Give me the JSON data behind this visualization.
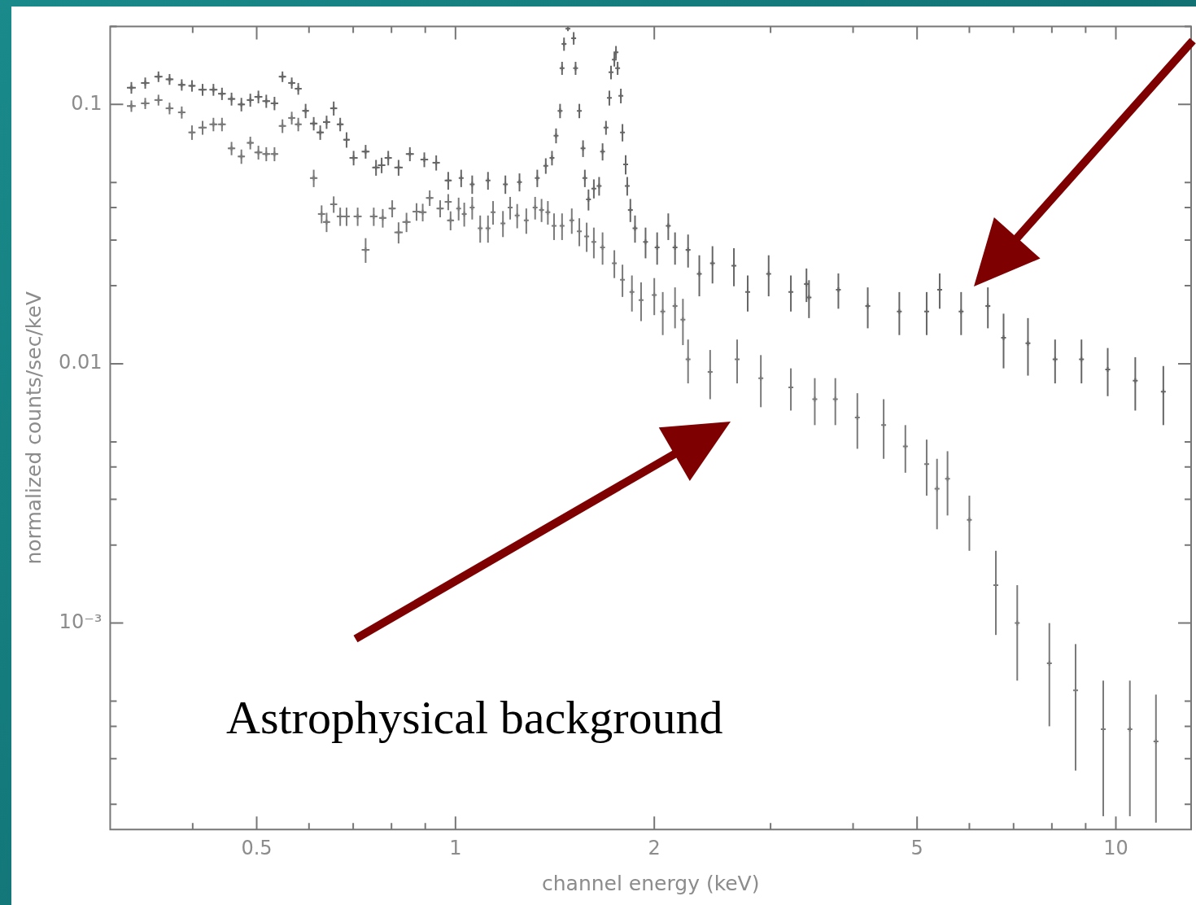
{
  "chart_data": {
    "type": "scatter",
    "xlabel": "channel energy (keV)",
    "ylabel": "normalized counts/sec/keV",
    "log": "xy",
    "marker": "cross",
    "xlim": [
      0.3,
      13
    ],
    "ylim": [
      0.00016,
      0.2
    ],
    "xticks": [
      {
        "value": 0.4,
        "label": null
      },
      0.5,
      {
        "value": 0.6,
        "label": null
      },
      {
        "value": 0.7,
        "label": null
      },
      {
        "value": 0.8,
        "label": null
      },
      {
        "value": 0.9,
        "label": null
      },
      1,
      2,
      {
        "value": 3,
        "label": null
      },
      {
        "value": 4,
        "label": null
      },
      5,
      {
        "value": 6,
        "label": null
      },
      {
        "value": 7,
        "label": null
      },
      {
        "value": 8,
        "label": null
      },
      {
        "value": 9,
        "label": null
      },
      10
    ],
    "yticks": [
      {
        "value": 0.0002,
        "label": null
      },
      {
        "value": 0.0003,
        "label": null
      },
      {
        "value": 0.0004,
        "label": null
      },
      {
        "value": 0.0005,
        "label": null
      },
      {
        "value": 0.001,
        "label": "10⁻³"
      },
      {
        "value": 0.002,
        "label": null
      },
      {
        "value": 0.003,
        "label": null
      },
      {
        "value": 0.004,
        "label": null
      },
      {
        "value": 0.005,
        "label": null
      },
      0.01,
      {
        "value": 0.02,
        "label": null
      },
      {
        "value": 0.03,
        "label": null
      },
      {
        "value": 0.04,
        "label": null
      },
      {
        "value": 0.05,
        "label": null
      },
      0.1,
      {
        "value": 0.2,
        "label": null
      }
    ],
    "annotations": [
      "Astrophysical background"
    ],
    "series": [
      {
        "color": "#666666",
        "x": [
          0.323,
          0.339,
          0.355,
          0.369,
          0.385,
          0.399,
          0.414,
          0.43,
          0.443,
          0.458,
          0.474,
          0.489,
          0.503,
          0.517,
          0.532,
          0.547,
          0.565,
          0.578,
          0.593,
          0.61,
          0.624,
          0.638,
          0.654,
          0.669,
          0.684,
          0.701,
          0.731,
          0.758,
          0.773,
          0.791,
          0.82,
          0.853,
          0.897,
          0.935,
          0.975,
          1.02,
          1.06,
          1.12,
          1.19,
          1.25,
          1.33,
          1.37,
          1.4,
          1.42,
          1.44,
          1.45,
          1.46,
          1.48,
          1.51,
          1.52,
          1.54,
          1.56,
          1.57,
          1.59,
          1.62,
          1.65,
          1.67,
          1.69,
          1.71,
          1.72,
          1.74,
          1.75,
          1.76,
          1.78,
          1.79,
          1.81,
          1.82,
          1.84,
          1.87,
          1.94,
          2.02,
          2.1,
          2.15,
          2.25,
          2.34,
          2.45,
          2.64,
          2.77,
          2.98,
          3.22,
          3.4,
          3.43,
          3.8,
          4.21,
          4.7,
          5.17,
          5.41,
          5.83,
          6.4,
          6.76,
          7.36,
          8.09,
          8.87,
          9.72,
          10.7,
          11.8
        ],
        "values": [
          0.116,
          0.121,
          0.128,
          0.125,
          0.119,
          0.118,
          0.114,
          0.114,
          0.11,
          0.105,
          0.1,
          0.104,
          0.107,
          0.103,
          0.101,
          0.128,
          0.121,
          0.115,
          0.0945,
          0.0844,
          0.078,
          0.0855,
          0.0966,
          0.0838,
          0.0731,
          0.0622,
          0.0658,
          0.0571,
          0.0583,
          0.0622,
          0.0571,
          0.0644,
          0.0613,
          0.0596,
          0.0509,
          0.052,
          0.0492,
          0.0509,
          0.0492,
          0.0502,
          0.052,
          0.058,
          0.0622,
          0.0758,
          0.0945,
          0.138,
          0.171,
          0.196,
          0.18,
          0.138,
          0.0945,
          0.0677,
          0.052,
          0.043,
          0.0474,
          0.0485,
          0.0658,
          0.0814,
          0.106,
          0.133,
          0.149,
          0.159,
          0.138,
          0.108,
          0.078,
          0.0587,
          0.0485,
          0.0392,
          0.0333,
          0.0295,
          0.0281,
          0.034,
          0.0281,
          0.0275,
          0.0222,
          0.0244,
          0.0239,
          0.0189,
          0.0222,
          0.0189,
          0.0203,
          0.018,
          0.0193,
          0.0167,
          0.0159,
          0.0159,
          0.0193,
          0.0159,
          0.0167,
          0.0126,
          0.012,
          0.0104,
          0.0104,
          0.0095,
          0.0086,
          0.0078
        ],
        "errors": [
          0.006,
          0.006,
          0.006,
          0.006,
          0.006,
          0.006,
          0.006,
          0.006,
          0.006,
          0.006,
          0.006,
          0.006,
          0.006,
          0.006,
          0.006,
          0.006,
          0.006,
          0.006,
          0.006,
          0.005,
          0.005,
          0.005,
          0.006,
          0.005,
          0.005,
          0.004,
          0.004,
          0.004,
          0.004,
          0.004,
          0.004,
          0.004,
          0.004,
          0.004,
          0.004,
          0.004,
          0.004,
          0.004,
          0.004,
          0.004,
          0.004,
          0.004,
          0.004,
          0.005,
          0.006,
          0.008,
          0.01,
          0.003,
          0.01,
          0.008,
          0.006,
          0.005,
          0.004,
          0.004,
          0.004,
          0.004,
          0.005,
          0.005,
          0.007,
          0.008,
          0.009,
          0.009,
          0.008,
          0.007,
          0.006,
          0.005,
          0.004,
          0.004,
          0.004,
          0.004,
          0.004,
          0.004,
          0.004,
          0.004,
          0.004,
          0.004,
          0.004,
          0.003,
          0.004,
          0.003,
          0.003,
          0.003,
          0.003,
          0.003,
          0.003,
          0.003,
          0.003,
          0.003,
          0.003,
          0.003,
          0.003,
          0.002,
          0.002,
          0.002,
          0.002,
          0.002
        ],
        "xerrors": [
          0.005,
          0.005,
          0.005,
          0.005,
          0.005,
          0.005,
          0.006,
          0.006,
          0.006,
          0.006,
          0.006,
          0.006,
          0.007,
          0.007,
          0.007,
          0.007,
          0.007,
          0.007,
          0.007,
          0.008,
          0.008,
          0.008,
          0.008,
          0.008,
          0.008,
          0.01,
          0.01,
          0.01,
          0.01,
          0.01,
          0.012,
          0.012,
          0.012,
          0.012,
          0.012,
          null,
          null,
          null,
          null,
          null,
          null,
          null,
          null,
          null,
          null,
          null,
          null,
          null,
          null,
          null,
          null,
          null,
          null,
          null,
          null,
          null,
          null,
          null,
          null,
          null,
          null,
          null,
          null,
          null,
          null,
          null,
          null,
          null,
          null,
          null,
          null,
          null,
          null,
          null,
          null,
          null,
          null,
          null,
          null,
          null,
          null,
          null,
          null,
          null,
          null,
          null,
          null,
          null,
          null,
          null,
          null,
          null,
          null,
          null,
          null,
          null
        ]
      },
      {
        "color": "#7a7a7a",
        "x": [
          0.323,
          0.339,
          0.355,
          0.369,
          0.385,
          0.399,
          0.414,
          0.43,
          0.443,
          0.458,
          0.474,
          0.489,
          0.503,
          0.517,
          0.532,
          0.547,
          0.565,
          0.578,
          0.61,
          0.627,
          0.638,
          0.654,
          0.669,
          0.684,
          0.711,
          0.731,
          0.752,
          0.776,
          0.802,
          0.82,
          0.843,
          0.873,
          0.892,
          0.914,
          0.948,
          0.975,
          0.983,
          1.011,
          1.031,
          1.06,
          1.09,
          1.12,
          1.14,
          1.18,
          1.21,
          1.24,
          1.28,
          1.32,
          1.35,
          1.38,
          1.41,
          1.45,
          1.5,
          1.54,
          1.58,
          1.62,
          1.67,
          1.74,
          1.79,
          1.85,
          1.91,
          2,
          2.06,
          2.15,
          2.21,
          2.25,
          2.43,
          2.67,
          2.9,
          3.22,
          3.5,
          3.76,
          4.06,
          4.45,
          4.8,
          5.17,
          5.36,
          5.56,
          6,
          6.58,
          7.09,
          7.93,
          8.69,
          9.57,
          10.5,
          11.5
        ],
        "values": [
          0.0986,
          0.101,
          0.104,
          0.0966,
          0.0932,
          0.078,
          0.0814,
          0.0838,
          0.0838,
          0.0677,
          0.063,
          0.0711,
          0.0653,
          0.0644,
          0.0644,
          0.0826,
          0.0887,
          0.0838,
          0.052,
          0.0378,
          0.0352,
          0.0412,
          0.037,
          0.037,
          0.037,
          0.0275,
          0.037,
          0.0365,
          0.0397,
          0.0321,
          0.0352,
          0.0386,
          0.0384,
          0.0436,
          0.0397,
          0.0421,
          0.0357,
          0.0397,
          0.0378,
          0.04,
          0.0333,
          0.0333,
          0.0384,
          0.0348,
          0.04,
          0.0373,
          0.0357,
          0.04,
          0.0392,
          0.0384,
          0.034,
          0.034,
          0.0357,
          0.0324,
          0.031,
          0.0295,
          0.0281,
          0.0244,
          0.0211,
          0.0189,
          0.0176,
          0.0184,
          0.0159,
          0.0167,
          0.0148,
          0.0104,
          0.0093,
          0.0104,
          0.0088,
          0.0081,
          0.0073,
          0.0073,
          0.0062,
          0.0058,
          0.0048,
          0.0041,
          0.0033,
          0.0036,
          0.0025,
          0.0014,
          0.001,
          0.0007,
          0.00055,
          0.00039,
          0.00039,
          0.00035
        ],
        "errors": [
          0.005,
          0.005,
          0.005,
          0.005,
          0.005,
          0.005,
          0.005,
          0.005,
          0.005,
          0.004,
          0.004,
          0.004,
          0.004,
          0.004,
          0.004,
          0.005,
          0.005,
          0.005,
          0.004,
          0.003,
          0.003,
          0.003,
          0.003,
          0.003,
          0.003,
          0.003,
          0.003,
          0.003,
          0.003,
          0.003,
          0.003,
          0.003,
          0.003,
          0.003,
          0.003,
          0.003,
          0.003,
          0.004,
          0.004,
          0.004,
          0.004,
          0.004,
          0.004,
          0.004,
          0.004,
          0.004,
          0.004,
          0.004,
          0.004,
          0.004,
          0.004,
          0.004,
          0.004,
          0.004,
          0.004,
          0.004,
          0.004,
          0.003,
          0.003,
          0.003,
          0.003,
          0.003,
          0.003,
          0.003,
          0.003,
          0.002,
          0.002,
          0.002,
          0.002,
          0.0015,
          0.0015,
          0.0015,
          0.0015,
          0.0015,
          0.001,
          0.001,
          0.001,
          0.001,
          0.0006,
          0.0005,
          0.0004,
          0.0003,
          0.00028,
          0.00021,
          0.00021,
          0.00018
        ],
        "xerrors": [
          0.005,
          0.005,
          0.005,
          0.005,
          0.005,
          0.005,
          0.006,
          0.006,
          0.006,
          0.006,
          0.006,
          0.006,
          0.007,
          0.007,
          0.007,
          0.007,
          0.007,
          0.007,
          0.008,
          0.008,
          0.008,
          0.008,
          0.008,
          0.008,
          0.01,
          0.01,
          0.01,
          0.01,
          0.01,
          0.012,
          0.012,
          0.012,
          0.012,
          0.012,
          0.012,
          0.012,
          0.012,
          null,
          null,
          null,
          null,
          null,
          null,
          null,
          null,
          null,
          null,
          null,
          null,
          null,
          null,
          null,
          null,
          null,
          null,
          null,
          null,
          null,
          null,
          null,
          null,
          null,
          null,
          null,
          null,
          null,
          null,
          null,
          null,
          null,
          null,
          null,
          null,
          null,
          null,
          null,
          null,
          null,
          null,
          null,
          null,
          null,
          null,
          null,
          null,
          null
        ]
      }
    ]
  }
}
